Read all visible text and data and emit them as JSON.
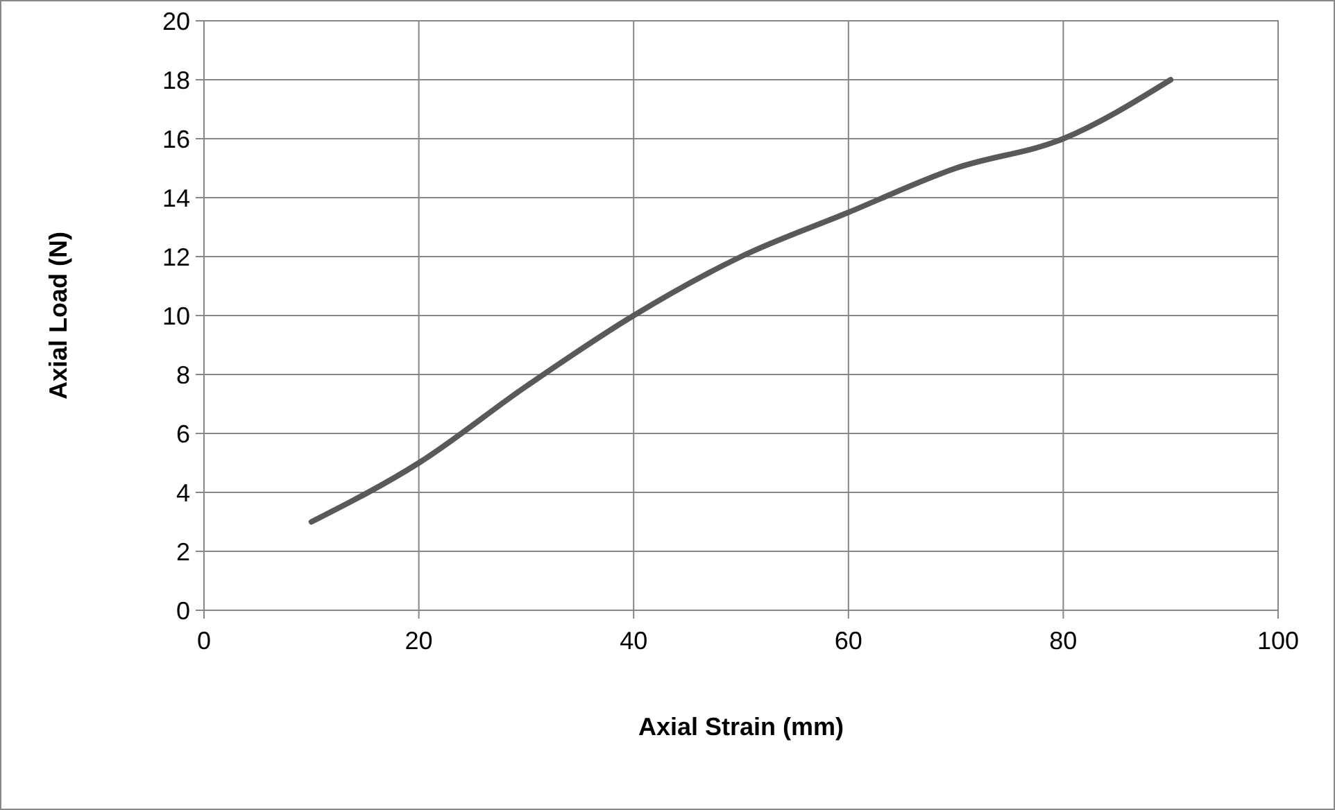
{
  "chart_data": {
    "type": "line",
    "xlabel": "Axial Strain (mm)",
    "ylabel": "Axial Load (N)",
    "x": [
      10,
      20,
      30,
      40,
      50,
      60,
      70,
      80,
      90
    ],
    "series": [
      {
        "color": "#595959",
        "values": [
          3,
          5,
          7.6,
          10,
          12,
          13.5,
          15,
          16,
          18
        ]
      }
    ],
    "xlim": [
      0,
      100
    ],
    "xticks": [
      0,
      20,
      40,
      60,
      80,
      100
    ],
    "ylim": [
      0,
      20
    ],
    "yticks": [
      0,
      2,
      4,
      6,
      8,
      10,
      12,
      14,
      16,
      18,
      20
    ],
    "grid": true,
    "marker": "none",
    "line_style": "solid"
  }
}
